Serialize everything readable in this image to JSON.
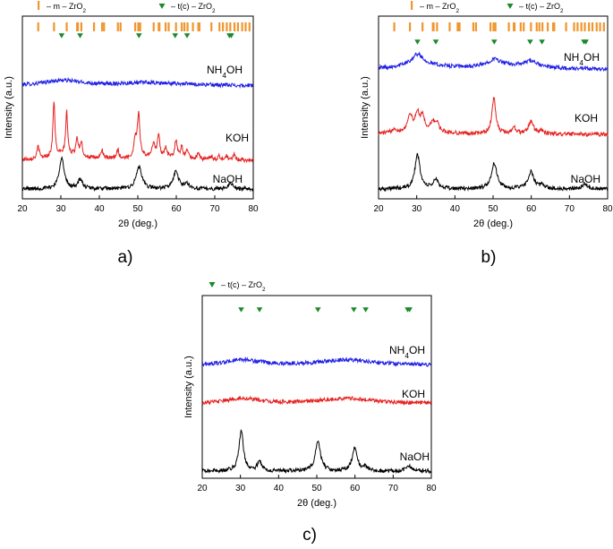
{
  "chart_data": [
    {
      "type": "line",
      "panel_label": "a)",
      "xlabel": "2θ (deg.)",
      "ylabel": "Intensity (a.u.)",
      "xlim": [
        20,
        80
      ],
      "xticks": [
        "20",
        "30",
        "40",
        "50",
        "60",
        "70",
        "80"
      ],
      "legend": [
        {
          "marker": "bar",
          "label_pre": "– m – ZrO",
          "sub": "2",
          "color": "#f0962e"
        },
        {
          "marker": "triangle",
          "label_pre": "– t(c) – ZrO",
          "sub": "2",
          "color": "#1a8a2a"
        }
      ],
      "m_zro2_positions": [
        24.1,
        28.2,
        31.5,
        34.2,
        34.4,
        35.3,
        38.6,
        40.7,
        41.2,
        44.8,
        45.5,
        49.3,
        50.1,
        50.6,
        54.1,
        55.4,
        55.6,
        57.2,
        58.0,
        59.9,
        61.4,
        62.1,
        62.9,
        64.3,
        65.7,
        66.0,
        69.1,
        71.2,
        72.1,
        73.1,
        74.0,
        75.1,
        76.0,
        77.1,
        78.0,
        79.0
      ],
      "t_zro2_positions": [
        30.2,
        35.0,
        50.3,
        59.7,
        62.8,
        73.8,
        74.3
      ],
      "series": [
        {
          "name": "NH4OH",
          "label_pre": "NH",
          "sub": "4",
          "label_post": "OH",
          "color": "#1f1fe6",
          "peaks": [
            [
              30.5,
              6,
              6
            ],
            [
              58,
              2,
              12
            ],
            [
              50,
              2,
              6
            ]
          ]
        },
        {
          "name": "KOH",
          "label_pre": "KOH",
          "sub": "",
          "label_post": "",
          "color": "#e61f1f",
          "peaks": [
            [
              24.1,
              14,
              0.3
            ],
            [
              28.2,
              62,
              0.3
            ],
            [
              31.5,
              48,
              0.3
            ],
            [
              34.2,
              20,
              0.35
            ],
            [
              35.3,
              16,
              0.35
            ],
            [
              40.7,
              10,
              0.35
            ],
            [
              44.8,
              10,
              0.35
            ],
            [
              49.3,
              20,
              0.35
            ],
            [
              50.2,
              48,
              0.4
            ],
            [
              54.1,
              16,
              0.35
            ],
            [
              55.4,
              24,
              0.35
            ],
            [
              57.2,
              10,
              0.35
            ],
            [
              59.9,
              20,
              0.35
            ],
            [
              61.4,
              14,
              0.35
            ],
            [
              62.9,
              10,
              0.35
            ],
            [
              65.7,
              8,
              0.35
            ],
            [
              69.1,
              4,
              0.35
            ],
            [
              71.2,
              4,
              0.35
            ],
            [
              73.1,
              4,
              0.35
            ],
            [
              75.1,
              6,
              0.35
            ],
            [
              31,
              6,
              5
            ],
            [
              55,
              4,
              6
            ]
          ]
        },
        {
          "name": "NaOH",
          "label_pre": "NaOH",
          "sub": "",
          "label_post": "",
          "color": "#000000",
          "peaks": [
            [
              30.2,
              35,
              0.75
            ],
            [
              35.0,
              10,
              0.75
            ],
            [
              50.3,
              25,
              0.85
            ],
            [
              59.9,
              19,
              0.85
            ],
            [
              62.8,
              5,
              0.8
            ],
            [
              73.8,
              3,
              0.8
            ],
            [
              74.3,
              3,
              0.8
            ]
          ]
        }
      ]
    },
    {
      "type": "line",
      "panel_label": "b)",
      "xlabel": "2θ (deg.)",
      "ylabel": "Intensity (a.u.)",
      "xlim": [
        20,
        80
      ],
      "xticks": [
        "20",
        "30",
        "40",
        "50",
        "60",
        "70",
        "80"
      ],
      "legend": [
        {
          "marker": "bar",
          "label_pre": "– m – ZrO",
          "sub": "2",
          "color": "#f0962e"
        },
        {
          "marker": "triangle",
          "label_pre": "– t(c) – ZrO",
          "sub": "2",
          "color": "#1a8a2a"
        }
      ],
      "m_zro2_positions": [
        24.1,
        28.2,
        31.5,
        34.2,
        34.4,
        35.3,
        38.6,
        40.7,
        41.2,
        44.8,
        45.5,
        49.3,
        50.1,
        50.6,
        54.1,
        55.4,
        55.6,
        57.2,
        58.0,
        59.9,
        61.4,
        62.1,
        62.9,
        64.3,
        65.7,
        66.0,
        69.1,
        71.2,
        72.1,
        73.1,
        74.0,
        75.1,
        76.0,
        77.1,
        78.0,
        79.0
      ],
      "t_zro2_positions": [
        30.2,
        35.0,
        50.3,
        59.7,
        62.8,
        73.8,
        74.3
      ],
      "series": [
        {
          "name": "NH4OH",
          "label_pre": "NH",
          "sub": "4",
          "label_post": "OH",
          "color": "#1f1fe6",
          "peaks": [
            [
              30.2,
              12,
              1.8
            ],
            [
              50.3,
              8,
              2
            ],
            [
              59.9,
              6,
              2
            ],
            [
              31,
              5,
              8
            ],
            [
              55,
              4,
              10
            ]
          ]
        },
        {
          "name": "KOH",
          "label_pre": "KOH",
          "sub": "",
          "label_post": "",
          "color": "#e61f1f",
          "peaks": [
            [
              24.1,
              5,
              0.5
            ],
            [
              28.2,
              18,
              0.6
            ],
            [
              30.2,
              18,
              0.7
            ],
            [
              31.5,
              14,
              0.5
            ],
            [
              34.2,
              10,
              0.5
            ],
            [
              35.3,
              10,
              0.5
            ],
            [
              50.2,
              40,
              0.6
            ],
            [
              55.4,
              8,
              0.6
            ],
            [
              59.9,
              14,
              0.8
            ],
            [
              62.9,
              4,
              0.6
            ],
            [
              31,
              6,
              5
            ]
          ]
        },
        {
          "name": "NaOH",
          "label_pre": "NaOH",
          "sub": "",
          "label_post": "",
          "color": "#000000",
          "peaks": [
            [
              30.2,
              38,
              0.8
            ],
            [
              35.0,
              10,
              0.8
            ],
            [
              50.3,
              28,
              0.9
            ],
            [
              59.9,
              19,
              0.9
            ],
            [
              62.8,
              4,
              0.8
            ],
            [
              73.8,
              3,
              0.8
            ],
            [
              74.3,
              3,
              0.8
            ]
          ]
        }
      ]
    },
    {
      "type": "line",
      "panel_label": "c)",
      "xlabel": "2θ (deg.)",
      "ylabel": "Intensity (a.u.)",
      "xlim": [
        20,
        80
      ],
      "xticks": [
        "20",
        "30",
        "40",
        "50",
        "60",
        "70",
        "80"
      ],
      "legend": [
        {
          "marker": "triangle",
          "label_pre": "– t(c) – ZrO",
          "sub": "2",
          "color": "#1a8a2a"
        }
      ],
      "m_zro2_positions": [],
      "t_zro2_positions": [
        30.2,
        35.0,
        50.3,
        59.7,
        62.8,
        73.8,
        74.3
      ],
      "series": [
        {
          "name": "NH4OH",
          "label_pre": "NH",
          "sub": "4",
          "label_post": "OH",
          "color": "#1f1fe6",
          "peaks": [
            [
              30.5,
              6,
              5
            ],
            [
              58,
              6,
              9
            ]
          ]
        },
        {
          "name": "KOH",
          "label_pre": "KOH",
          "sub": "",
          "label_post": "",
          "color": "#e61f1f",
          "peaks": [
            [
              30.5,
              6,
              5
            ],
            [
              58,
              6,
              9
            ]
          ]
        },
        {
          "name": "NaOH",
          "label_pre": "NaOH",
          "sub": "",
          "label_post": "",
          "color": "#000000",
          "peaks": [
            [
              30.2,
              45,
              0.7
            ],
            [
              35.0,
              10,
              0.7
            ],
            [
              50.3,
              34,
              0.8
            ],
            [
              59.9,
              25,
              0.8
            ],
            [
              62.8,
              4,
              0.8
            ],
            [
              73.8,
              3,
              0.8
            ],
            [
              74.3,
              3,
              0.8
            ]
          ]
        }
      ]
    }
  ]
}
